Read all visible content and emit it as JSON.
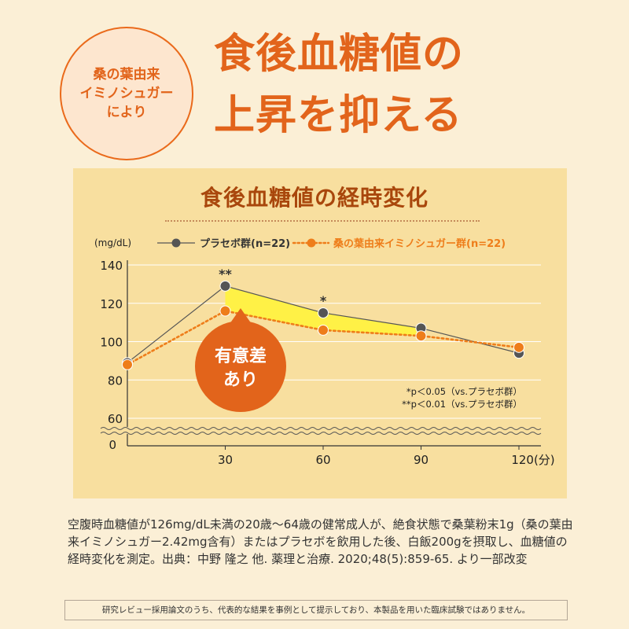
{
  "badge": {
    "lines": [
      "桑の葉由来",
      "イミノシュガー",
      "により"
    ]
  },
  "headline": {
    "line1": "食後血糖値の",
    "line2": "上昇を抑える"
  },
  "chart_data": {
    "type": "line",
    "title": "食後血糖値の経時変化",
    "ylabel": "(mg/dL)",
    "x_unit": "(分)",
    "y_ticks": [
      140,
      120,
      100,
      80,
      60
    ],
    "y_zero_label": "0",
    "ylim": [
      60,
      140
    ],
    "x_ticks": [
      30,
      60,
      90,
      120
    ],
    "x": [
      0,
      30,
      60,
      90,
      120
    ],
    "series": [
      {
        "name": "プラセボ群(n=22)",
        "color": "#555555",
        "style": "solid",
        "values": [
          89,
          129,
          115,
          107,
          94
        ]
      },
      {
        "name": "桑の葉由来イミノシュガー群(n=22)",
        "color": "#ee7d1a",
        "style": "dotted",
        "values": [
          88,
          116,
          106,
          103,
          97
        ]
      }
    ],
    "significance_marks": [
      {
        "x": 30,
        "label": "**"
      },
      {
        "x": 60,
        "label": "*"
      }
    ],
    "callout": {
      "lines": [
        "有意差",
        "あり"
      ],
      "color": "#e2641b"
    },
    "shaded_region": {
      "color": "#fff146",
      "x_range": [
        30,
        90
      ]
    },
    "notes": [
      "*p＜0.05（vs.プラセボ群）",
      "**p＜0.01（vs.プラセボ群）"
    ],
    "grid": "horizontal"
  },
  "description": "空腹時血糖値が126mg/dL未満の20歳～64歳の健常成人が、絶食状態で桑葉粉末1g（桑の葉由来イミノシュガー2.42mg含有）またはプラセボを飲用した後、白飯200gを摂取し、血糖値の経時変化を測定。出典：中野 隆之 他. 薬理と治療. 2020;48(5):859-65. より一部改変",
  "footnote": "研究レビュー採用論文のうち、代表的な結果を事例として提示しており、本製品を用いた臨床試験ではありません。",
  "colors": {
    "accent": "#e2641b",
    "panel": "#f8df9f",
    "background": "#fbefd6"
  }
}
